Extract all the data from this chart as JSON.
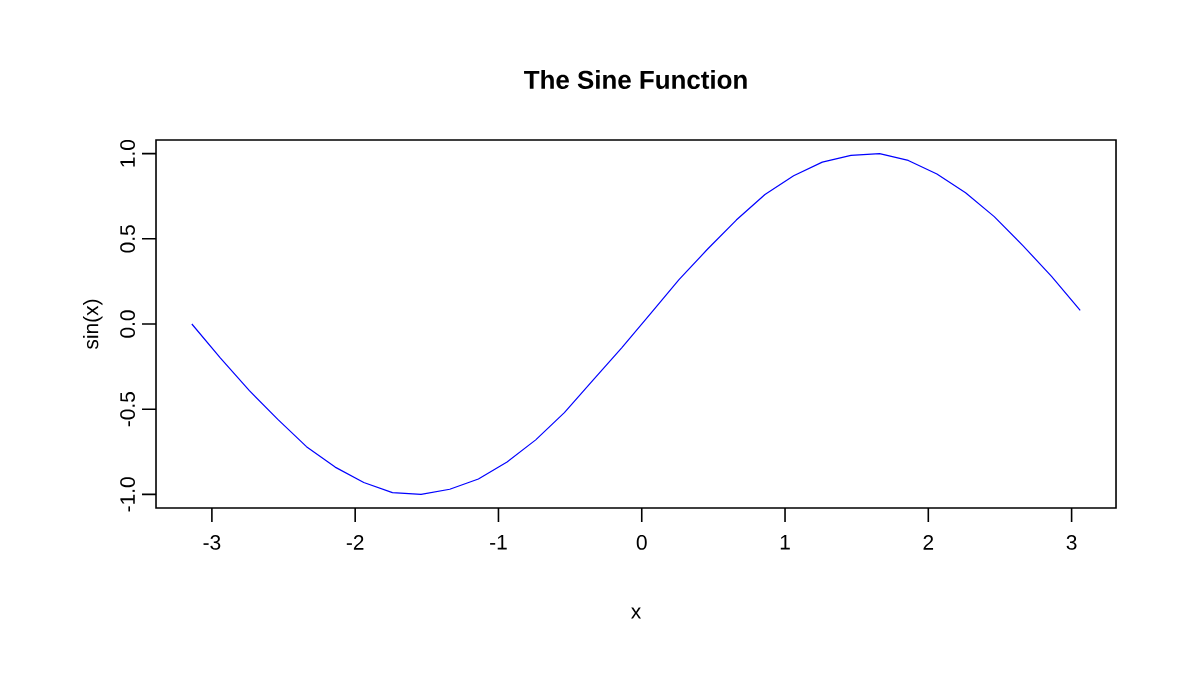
{
  "chart_data": {
    "type": "line",
    "title": "The Sine Function",
    "xlabel": "x",
    "ylabel": "sin(x)",
    "x": [
      -3.14,
      -2.94,
      -2.74,
      -2.54,
      -2.34,
      -2.14,
      -1.94,
      -1.74,
      -1.54,
      -1.34,
      -1.14,
      -0.94,
      -0.74,
      -0.54,
      -0.34,
      -0.14,
      0.06,
      0.26,
      0.46,
      0.66,
      0.86,
      1.06,
      1.26,
      1.46,
      1.66,
      1.86,
      2.06,
      2.26,
      2.46,
      2.66,
      2.86,
      3.06
    ],
    "series": [
      {
        "color": "#0000ff",
        "values": [
          0,
          -0.2,
          -0.39,
          -0.56,
          -0.72,
          -0.84,
          -0.93,
          -0.99,
          -1.0,
          -0.97,
          -0.91,
          -0.81,
          -0.68,
          -0.52,
          -0.33,
          -0.14,
          0.06,
          0.26,
          0.44,
          0.61,
          0.76,
          0.87,
          0.95,
          0.99,
          1.0,
          0.96,
          0.88,
          0.77,
          0.63,
          0.46,
          0.28,
          0.08
        ]
      }
    ],
    "xlim": [
      -3.39,
      3.31
    ],
    "ylim": [
      -1.08,
      1.08
    ],
    "xticks": [
      -3,
      -2,
      -1,
      0,
      1,
      2,
      3
    ],
    "yticks": [
      {
        "value": -1,
        "label": "-1.0"
      },
      {
        "value": -0.5,
        "label": "-0.5"
      },
      {
        "value": 0,
        "label": "0.0"
      },
      {
        "value": 0.5,
        "label": "0.5"
      },
      {
        "value": 1,
        "label": "1.0"
      }
    ],
    "grid": false,
    "marker": "none",
    "line_style": "solid"
  }
}
